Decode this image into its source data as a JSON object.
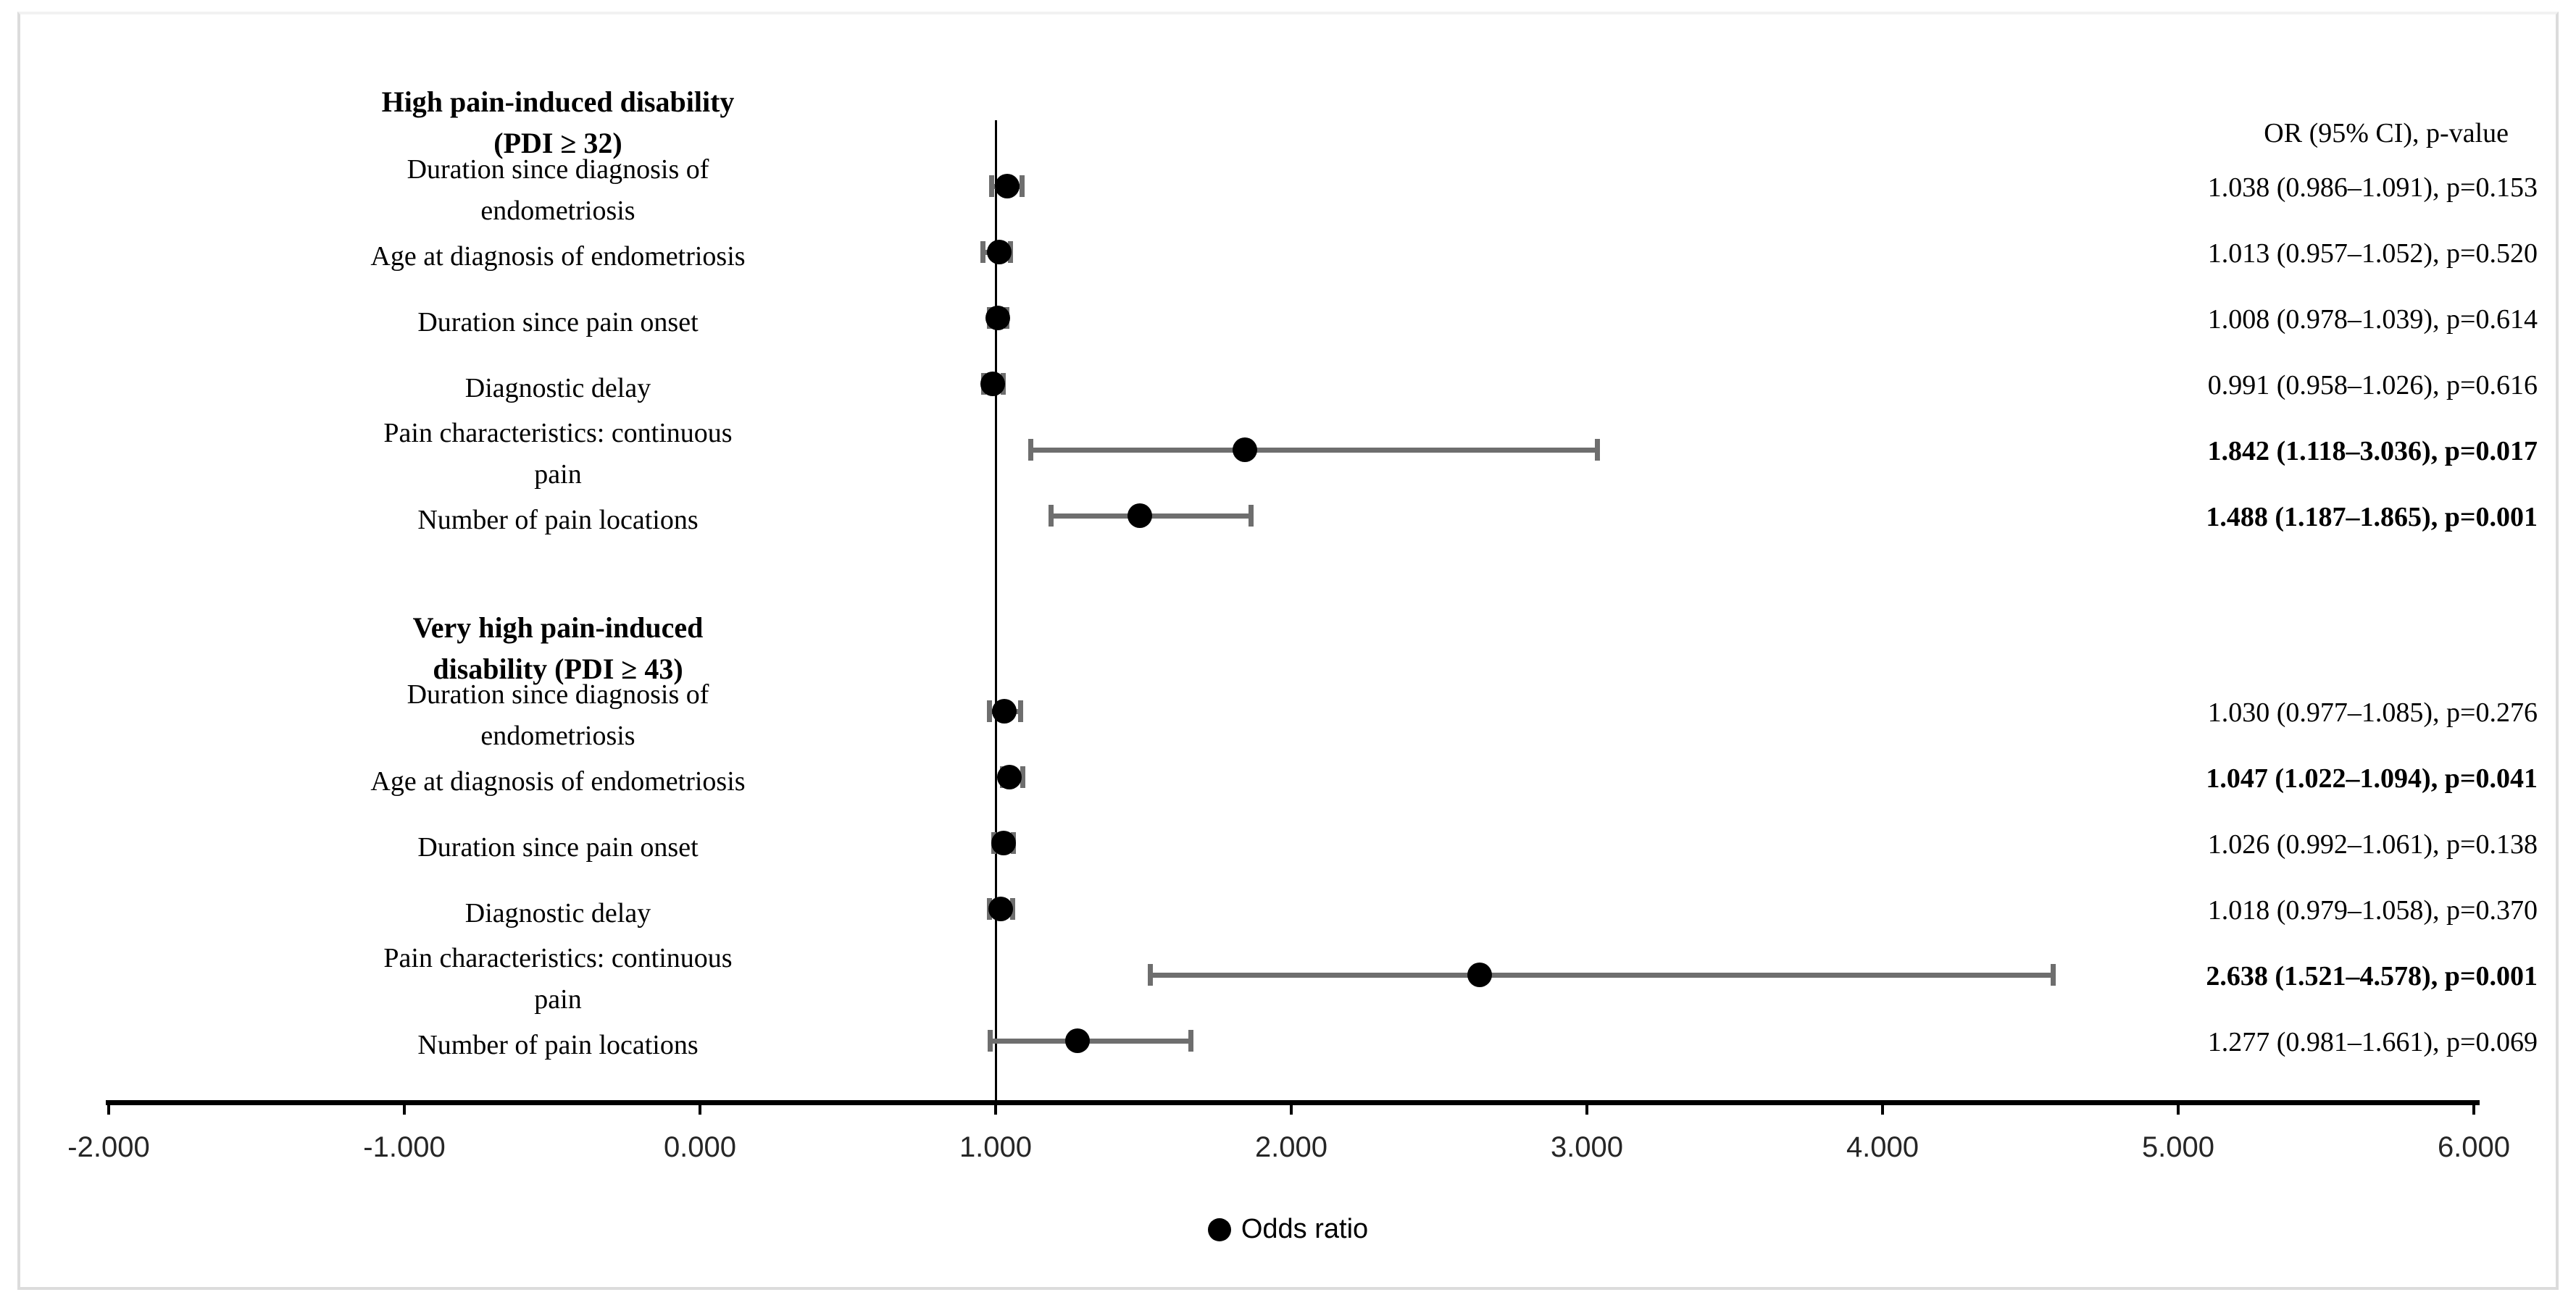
{
  "figure": {
    "right_column_header": "OR (95% CI), p-value",
    "legend_label": "Odds ratio",
    "colors": {
      "marker": "#000000",
      "whisker": "#6e6e6e",
      "axis": "#000000",
      "reference_line": "#000000",
      "frame": "#dcdcdc"
    }
  },
  "chart_data": {
    "type": "scatter",
    "subtype": "forest-plot",
    "title": "",
    "xlabel": "",
    "ylabel": "",
    "x_axis": {
      "min": -2,
      "max": 6,
      "tick_values": [
        -2,
        -1,
        0,
        1,
        2,
        3,
        4,
        5,
        6
      ],
      "tick_labels": [
        "-2.000",
        "-1.000",
        "0.000",
        "1.000",
        "2.000",
        "3.000",
        "4.000",
        "5.000",
        "6.000"
      ],
      "reference_line_value": 1.0,
      "grid": false
    },
    "legend": {
      "position": "bottom-center",
      "entries": [
        "Odds ratio"
      ]
    },
    "groups": [
      {
        "title_lines": [
          "High pain-induced disability",
          "(PDI ≥ 32)"
        ],
        "rows": [
          {
            "label_lines": [
              "Duration since diagnosis of",
              "endometriosis"
            ],
            "or": 1.038,
            "ci_low": 0.986,
            "ci_high": 1.091,
            "p": 0.153,
            "display": "1.038 (0.986–1.091), p=0.153",
            "bold": false
          },
          {
            "label_lines": [
              "Age at diagnosis of endometriosis"
            ],
            "or": 1.013,
            "ci_low": 0.957,
            "ci_high": 1.052,
            "p": 0.52,
            "display": "1.013 (0.957–1.052), p=0.520",
            "bold": false
          },
          {
            "label_lines": [
              "Duration since pain onset"
            ],
            "or": 1.008,
            "ci_low": 0.978,
            "ci_high": 1.039,
            "p": 0.614,
            "display": "1.008 (0.978–1.039), p=0.614",
            "bold": false
          },
          {
            "label_lines": [
              "Diagnostic delay"
            ],
            "or": 0.991,
            "ci_low": 0.958,
            "ci_high": 1.026,
            "p": 0.616,
            "display": "0.991 (0.958–1.026), p=0.616",
            "bold": false
          },
          {
            "label_lines": [
              "Pain characteristics: continuous",
              "pain"
            ],
            "or": 1.842,
            "ci_low": 1.118,
            "ci_high": 3.036,
            "p": 0.017,
            "display": "1.842 (1.118–3.036), p=0.017",
            "bold": true
          },
          {
            "label_lines": [
              "Number of pain locations"
            ],
            "or": 1.488,
            "ci_low": 1.187,
            "ci_high": 1.865,
            "p": 0.001,
            "display": "1.488 (1.187–1.865), p=0.001",
            "bold": true
          }
        ]
      },
      {
        "title_lines": [
          "Very high pain-induced",
          "disability (PDI ≥ 43)"
        ],
        "rows": [
          {
            "label_lines": [
              "Duration since diagnosis of",
              "endometriosis"
            ],
            "or": 1.03,
            "ci_low": 0.977,
            "ci_high": 1.085,
            "p": 0.276,
            "display": "1.030 (0.977–1.085), p=0.276",
            "bold": false
          },
          {
            "label_lines": [
              "Age at diagnosis of endometriosis"
            ],
            "or": 1.047,
            "ci_low": 1.022,
            "ci_high": 1.094,
            "p": 0.041,
            "display": "1.047 (1.022–1.094), p=0.041",
            "bold": true
          },
          {
            "label_lines": [
              "Duration since pain onset"
            ],
            "or": 1.026,
            "ci_low": 0.992,
            "ci_high": 1.061,
            "p": 0.138,
            "display": "1.026 (0.992–1.061), p=0.138",
            "bold": false
          },
          {
            "label_lines": [
              "Diagnostic delay"
            ],
            "or": 1.018,
            "ci_low": 0.979,
            "ci_high": 1.058,
            "p": 0.37,
            "display": "1.018 (0.979–1.058), p=0.370",
            "bold": false
          },
          {
            "label_lines": [
              "Pain characteristics: continuous",
              "pain"
            ],
            "or": 2.638,
            "ci_low": 1.521,
            "ci_high": 4.578,
            "p": 0.001,
            "display": "2.638 (1.521–4.578), p=0.001",
            "bold": true
          },
          {
            "label_lines": [
              "Number of pain locations"
            ],
            "or": 1.277,
            "ci_low": 0.981,
            "ci_high": 1.661,
            "p": 0.069,
            "display": "1.277 (0.981–1.661), p=0.069",
            "bold": false
          }
        ]
      }
    ]
  }
}
